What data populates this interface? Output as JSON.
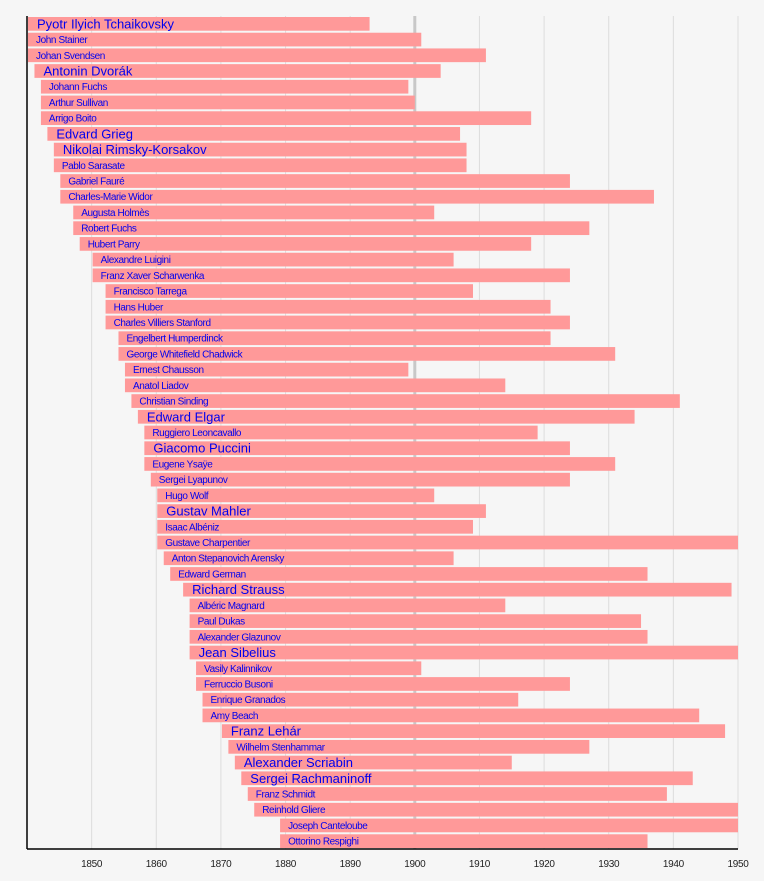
{
  "chart_data": {
    "type": "timeline",
    "title": "",
    "xlabel": "",
    "ylabel": "",
    "xlim": [
      1840,
      1950
    ],
    "x_ticks": [
      1850,
      1860,
      1870,
      1880,
      1890,
      1900,
      1910,
      1920,
      1930,
      1940,
      1950
    ],
    "reference_line": 1900,
    "grid": true,
    "colors": {
      "bar": "#ff9999",
      "label": "#0000ee",
      "grid": "#dddddd",
      "reference": "#c8c8c8"
    },
    "composers": [
      {
        "name": "Pyotr Ilyich Tchaikovsky",
        "born": 1840,
        "died": 1893,
        "highlight": true
      },
      {
        "name": "John Stainer",
        "born": 1840,
        "died": 1901,
        "highlight": false
      },
      {
        "name": "Johan Svendsen",
        "born": 1840,
        "died": 1911,
        "highlight": false
      },
      {
        "name": "Antonin Dvorák",
        "born": 1841,
        "died": 1904,
        "highlight": true
      },
      {
        "name": "Johann Fuchs",
        "born": 1842,
        "died": 1899,
        "highlight": false
      },
      {
        "name": "Arthur Sullivan",
        "born": 1842,
        "died": 1900,
        "highlight": false
      },
      {
        "name": "Arrigo Boito",
        "born": 1842,
        "died": 1918,
        "highlight": false
      },
      {
        "name": "Edvard Grieg",
        "born": 1843,
        "died": 1907,
        "highlight": true
      },
      {
        "name": "Nikolai Rimsky-Korsakov",
        "born": 1844,
        "died": 1908,
        "highlight": true
      },
      {
        "name": "Pablo Sarasate",
        "born": 1844,
        "died": 1908,
        "highlight": false
      },
      {
        "name": "Gabriel Fauré",
        "born": 1845,
        "died": 1924,
        "highlight": false
      },
      {
        "name": "Charles-Marie Widor",
        "born": 1845,
        "died": 1937,
        "highlight": false
      },
      {
        "name": "Augusta Holmès",
        "born": 1847,
        "died": 1903,
        "highlight": false
      },
      {
        "name": "Robert Fuchs",
        "born": 1847,
        "died": 1927,
        "highlight": false
      },
      {
        "name": "Hubert Parry",
        "born": 1848,
        "died": 1918,
        "highlight": false
      },
      {
        "name": "Alexandre Luigini",
        "born": 1850,
        "died": 1906,
        "highlight": false
      },
      {
        "name": "Franz Xaver Scharwenka",
        "born": 1850,
        "died": 1924,
        "highlight": false
      },
      {
        "name": "Francisco Tarrega",
        "born": 1852,
        "died": 1909,
        "highlight": false
      },
      {
        "name": "Hans Huber",
        "born": 1852,
        "died": 1921,
        "highlight": false
      },
      {
        "name": "Charles Villiers Stanford",
        "born": 1852,
        "died": 1924,
        "highlight": false
      },
      {
        "name": "Engelbert Humperdinck",
        "born": 1854,
        "died": 1921,
        "highlight": false
      },
      {
        "name": "George Whitefield Chadwick",
        "born": 1854,
        "died": 1931,
        "highlight": false
      },
      {
        "name": "Ernest Chausson",
        "born": 1855,
        "died": 1899,
        "highlight": false
      },
      {
        "name": "Anatol Liadov",
        "born": 1855,
        "died": 1914,
        "highlight": false
      },
      {
        "name": "Christian Sinding",
        "born": 1856,
        "died": 1941,
        "highlight": false
      },
      {
        "name": "Edward Elgar",
        "born": 1857,
        "died": 1934,
        "highlight": true
      },
      {
        "name": "Ruggiero Leoncavallo",
        "born": 1858,
        "died": 1919,
        "highlight": false
      },
      {
        "name": "Giacomo Puccini",
        "born": 1858,
        "died": 1924,
        "highlight": true
      },
      {
        "name": "Eugene Ysaÿe",
        "born": 1858,
        "died": 1931,
        "highlight": false
      },
      {
        "name": "Sergei Lyapunov",
        "born": 1859,
        "died": 1924,
        "highlight": false
      },
      {
        "name": "Hugo Wolf",
        "born": 1860,
        "died": 1903,
        "highlight": false
      },
      {
        "name": "Gustav Mahler",
        "born": 1860,
        "died": 1911,
        "highlight": true
      },
      {
        "name": "Isaac Albéniz",
        "born": 1860,
        "died": 1909,
        "highlight": false
      },
      {
        "name": "Gustave Charpentier",
        "born": 1860,
        "died": 1956,
        "highlight": false
      },
      {
        "name": "Anton Stepanovich Arensky",
        "born": 1861,
        "died": 1906,
        "highlight": false
      },
      {
        "name": "Edward German",
        "born": 1862,
        "died": 1936,
        "highlight": false
      },
      {
        "name": "Richard Strauss",
        "born": 1864,
        "died": 1949,
        "highlight": true
      },
      {
        "name": "Albéric Magnard",
        "born": 1865,
        "died": 1914,
        "highlight": false
      },
      {
        "name": "Paul Dukas",
        "born": 1865,
        "died": 1935,
        "highlight": false
      },
      {
        "name": "Alexander Glazunov",
        "born": 1865,
        "died": 1936,
        "highlight": false
      },
      {
        "name": "Jean Sibelius",
        "born": 1865,
        "died": 1957,
        "highlight": true
      },
      {
        "name": "Vasily Kalinnikov",
        "born": 1866,
        "died": 1901,
        "highlight": false
      },
      {
        "name": "Ferruccio Busoni",
        "born": 1866,
        "died": 1924,
        "highlight": false
      },
      {
        "name": "Enrique Granados",
        "born": 1867,
        "died": 1916,
        "highlight": false
      },
      {
        "name": "Amy Beach",
        "born": 1867,
        "died": 1944,
        "highlight": false
      },
      {
        "name": "Franz Lehár",
        "born": 1870,
        "died": 1948,
        "highlight": true
      },
      {
        "name": "Wilhelm Stenhammar",
        "born": 1871,
        "died": 1927,
        "highlight": false
      },
      {
        "name": "Alexander Scriabin",
        "born": 1872,
        "died": 1915,
        "highlight": true
      },
      {
        "name": "Sergei Rachmaninoff",
        "born": 1873,
        "died": 1943,
        "highlight": true
      },
      {
        "name": "Franz Schmidt",
        "born": 1874,
        "died": 1939,
        "highlight": false
      },
      {
        "name": "Reinhold Gliere",
        "born": 1875,
        "died": 1956,
        "highlight": false
      },
      {
        "name": "Joseph Canteloube",
        "born": 1879,
        "died": 1957,
        "highlight": false
      },
      {
        "name": "Ottorino Respighi",
        "born": 1879,
        "died": 1936,
        "highlight": false
      }
    ]
  }
}
